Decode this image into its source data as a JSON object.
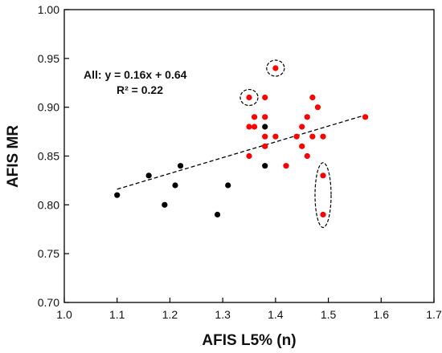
{
  "chart_data": {
    "type": "scatter",
    "xlabel": "AFIS L5% (n)",
    "ylabel": "AFIS MR",
    "xlim": [
      1.0,
      1.7
    ],
    "ylim": [
      0.7,
      1.0
    ],
    "x_ticks": [
      "1.0",
      "1.1",
      "1.2",
      "1.3",
      "1.4",
      "1.5",
      "1.6",
      "1.7"
    ],
    "y_ticks": [
      "0.70",
      "0.75",
      "0.80",
      "0.85",
      "0.90",
      "0.95",
      "1.00"
    ],
    "grid": false,
    "legend": "none",
    "series": [
      {
        "color": "#000000",
        "points": [
          {
            "x": 1.1,
            "y": 0.81
          },
          {
            "x": 1.16,
            "y": 0.83
          },
          {
            "x": 1.19,
            "y": 0.8
          },
          {
            "x": 1.21,
            "y": 0.82
          },
          {
            "x": 1.22,
            "y": 0.84
          },
          {
            "x": 1.29,
            "y": 0.79
          },
          {
            "x": 1.31,
            "y": 0.82
          },
          {
            "x": 1.38,
            "y": 0.84
          },
          {
            "x": 1.38,
            "y": 0.88
          }
        ]
      },
      {
        "color": "#ff0000",
        "points": [
          {
            "x": 1.35,
            "y": 0.91
          },
          {
            "x": 1.35,
            "y": 0.88
          },
          {
            "x": 1.36,
            "y": 0.89
          },
          {
            "x": 1.36,
            "y": 0.88
          },
          {
            "x": 1.35,
            "y": 0.85
          },
          {
            "x": 1.38,
            "y": 0.91
          },
          {
            "x": 1.38,
            "y": 0.89
          },
          {
            "x": 1.38,
            "y": 0.87
          },
          {
            "x": 1.38,
            "y": 0.86
          },
          {
            "x": 1.4,
            "y": 0.94
          },
          {
            "x": 1.4,
            "y": 0.87
          },
          {
            "x": 1.42,
            "y": 0.84
          },
          {
            "x": 1.44,
            "y": 0.87
          },
          {
            "x": 1.45,
            "y": 0.88
          },
          {
            "x": 1.45,
            "y": 0.86
          },
          {
            "x": 1.46,
            "y": 0.89
          },
          {
            "x": 1.46,
            "y": 0.85
          },
          {
            "x": 1.47,
            "y": 0.91
          },
          {
            "x": 1.47,
            "y": 0.87
          },
          {
            "x": 1.48,
            "y": 0.9
          },
          {
            "x": 1.49,
            "y": 0.87
          },
          {
            "x": 1.49,
            "y": 0.83
          },
          {
            "x": 1.49,
            "y": 0.79
          },
          {
            "x": 1.57,
            "y": 0.89
          }
        ]
      }
    ],
    "trendline": {
      "style": "dashed",
      "color": "#000000",
      "x_range": [
        1.1,
        1.57
      ],
      "y_values": [
        0.816,
        0.892
      ]
    },
    "annotations": [
      {
        "text": "All: y = 0.16x + 0.64"
      },
      {
        "text": "R² = 0.22"
      }
    ],
    "highlight_ellipses": [
      {
        "around": {
          "x": 1.35,
          "y": 0.91
        }
      },
      {
        "around": {
          "x": 1.4,
          "y": 0.94
        }
      },
      {
        "around": [
          {
            "x": 1.49,
            "y": 0.83
          },
          {
            "x": 1.49,
            "y": 0.79
          }
        ]
      }
    ]
  }
}
